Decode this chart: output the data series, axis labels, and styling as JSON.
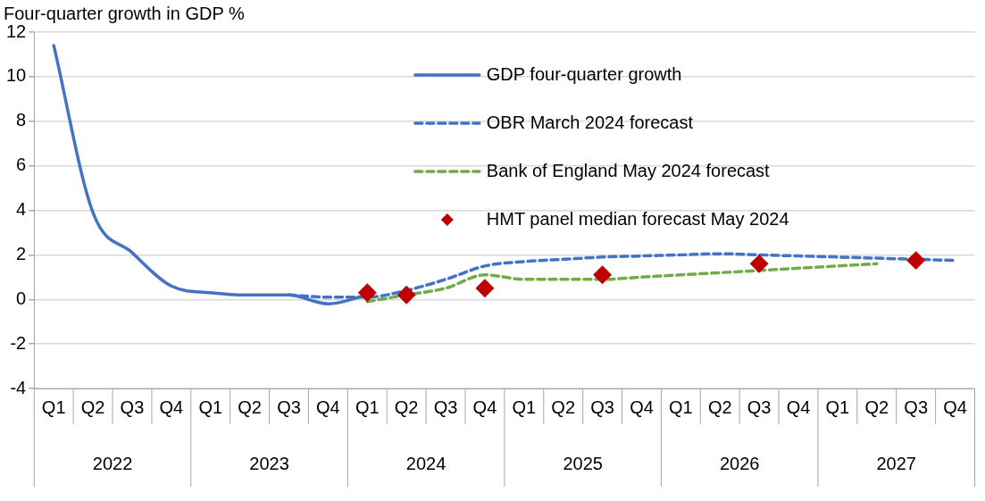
{
  "chart_data": {
    "type": "line",
    "title": "Four-quarter growth in GDP %",
    "categories": [
      "Q1",
      "Q2",
      "Q3",
      "Q4",
      "Q1",
      "Q2",
      "Q3",
      "Q4",
      "Q1",
      "Q2",
      "Q3",
      "Q4",
      "Q1",
      "Q2",
      "Q3",
      "Q4",
      "Q1",
      "Q2",
      "Q3",
      "Q4",
      "Q1",
      "Q2",
      "Q3",
      "Q4"
    ],
    "annotations": [
      "2022",
      "2023",
      "2024",
      "2025",
      "2026",
      "2027"
    ],
    "ylim": [
      -4,
      12
    ],
    "yticks": [
      -4,
      -2,
      0,
      2,
      4,
      6,
      8,
      10,
      12
    ],
    "grid": "y",
    "legend": "top right",
    "series": [
      {
        "name": "GDP four-quarter growth",
        "color": "#4472c4",
        "line_style": "solid",
        "marker": "none",
        "values": [
          11.4,
          3.9,
          2.1,
          0.6,
          0.3,
          0.2,
          0.2,
          -0.2,
          0.2,
          null,
          null,
          null,
          null,
          null,
          null,
          null,
          null,
          null,
          null,
          null,
          null,
          null,
          null,
          null
        ]
      },
      {
        "name": "OBR March 2024 forecast",
        "color": "#4472c4",
        "line_style": "dashed",
        "marker": "none",
        "values": [
          null,
          null,
          null,
          null,
          null,
          null,
          0.2,
          0.1,
          0.1,
          0.4,
          0.9,
          1.5,
          1.7,
          1.8,
          1.9,
          1.95,
          2.0,
          2.05,
          2.0,
          1.95,
          1.9,
          1.85,
          1.8,
          1.75
        ]
      },
      {
        "name": "Bank of England May 2024 forecast",
        "color": "#70ad47",
        "line_style": "dashed",
        "marker": "none",
        "values": [
          null,
          null,
          null,
          null,
          null,
          null,
          null,
          null,
          -0.1,
          0.2,
          0.5,
          1.1,
          0.9,
          0.9,
          0.9,
          1.0,
          1.1,
          1.2,
          1.3,
          1.4,
          1.5,
          1.6,
          null,
          null
        ]
      },
      {
        "name": "HMT panel median forecast May 2024",
        "type": "scatter",
        "color": "#c00000",
        "marker": "diamond",
        "values": [
          null,
          null,
          null,
          null,
          null,
          null,
          null,
          null,
          0.3,
          0.2,
          null,
          0.5,
          null,
          null,
          1.1,
          null,
          null,
          null,
          1.6,
          null,
          null,
          null,
          1.75,
          null
        ]
      }
    ]
  }
}
